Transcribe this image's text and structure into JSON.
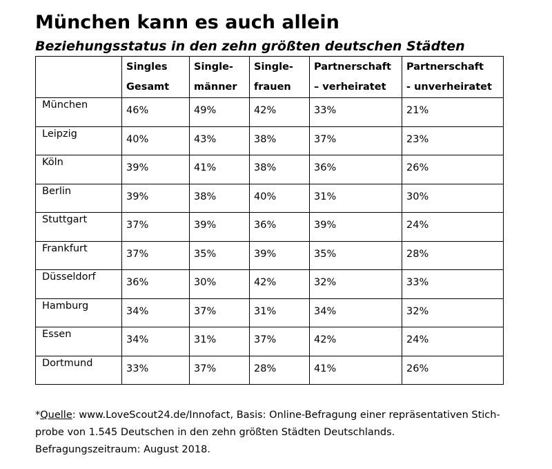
{
  "title": "München kann es auch allein",
  "subtitle": "Beziehungsstatus in den zehn größten deutschen Städten",
  "chart_data": {
    "type": "table",
    "columns": [
      {
        "lines": [
          "",
          ""
        ]
      },
      {
        "lines": [
          "Singles",
          "Gesamt"
        ]
      },
      {
        "lines": [
          "Single-",
          "männer"
        ]
      },
      {
        "lines": [
          "Single-",
          "frauen"
        ]
      },
      {
        "lines": [
          "Partnerschaft",
          "– verheiratet"
        ]
      },
      {
        "lines": [
          "Partnerschaft",
          "- unverheiratet"
        ]
      }
    ],
    "rows": [
      {
        "city": "München",
        "values": [
          "46%",
          "49%",
          "42%",
          "33%",
          "21%"
        ]
      },
      {
        "city": "Leipzig",
        "values": [
          "40%",
          "43%",
          "38%",
          "37%",
          "23%"
        ]
      },
      {
        "city": "Köln",
        "values": [
          "39%",
          "41%",
          "38%",
          "36%",
          "26%"
        ]
      },
      {
        "city": "Berlin",
        "values": [
          "39%",
          "38%",
          "40%",
          "31%",
          "30%"
        ]
      },
      {
        "city": "Stuttgart",
        "values": [
          "37%",
          "39%",
          "36%",
          "39%",
          "24%"
        ]
      },
      {
        "city": "Frankfurt",
        "values": [
          "37%",
          "35%",
          "39%",
          "35%",
          "28%"
        ]
      },
      {
        "city": "Düsseldorf",
        "values": [
          "36%",
          "30%",
          "42%",
          "32%",
          "33%"
        ]
      },
      {
        "city": "Hamburg",
        "values": [
          "34%",
          "37%",
          "31%",
          "34%",
          "32%"
        ]
      },
      {
        "city": "Essen",
        "values": [
          "34%",
          "31%",
          "37%",
          "42%",
          "24%"
        ]
      },
      {
        "city": "Dortmund",
        "values": [
          "33%",
          "37%",
          "28%",
          "41%",
          "26%"
        ]
      }
    ]
  },
  "footnote": {
    "prefix": "*",
    "link_label": "Quelle",
    "line1_rest": ": www.LoveScout24.de/Innofact, Basis: Online-Befragung einer repräsentativen Stich-",
    "line2": "probe von 1.545 Deutschen in den zehn größten Städten Deutschlands.",
    "line3": "Befragungszeitraum: August 2018."
  }
}
